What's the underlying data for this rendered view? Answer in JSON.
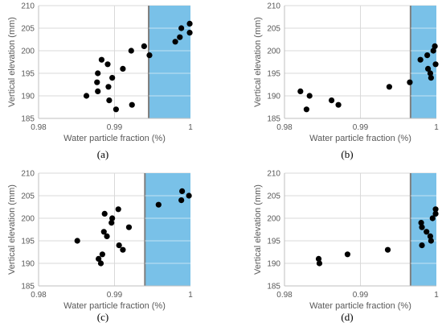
{
  "figure": {
    "captions": [
      "(a)",
      "(b)",
      "(c)",
      "(d)"
    ]
  },
  "colors": {
    "point": "#000000",
    "highlight_fill": "#79c1e8",
    "highlight_border": "#7f7f7f",
    "grid": "#d9d9d9",
    "axis": "#bfbfbf"
  },
  "chart_data": [
    {
      "type": "scatter",
      "caption": "(a)",
      "xlabel": "Water particle fraction (%)",
      "ylabel": "Vertical elevation (mm)",
      "xlim": [
        0.98,
        1
      ],
      "ylim": [
        185,
        210
      ],
      "xticks": [
        "0.98",
        "0.99",
        "1"
      ],
      "yticks": [
        "185",
        "190",
        "195",
        "200",
        "205",
        "210"
      ],
      "grid": true,
      "highlight_region": {
        "x": [
          0.9945,
          1.0
        ],
        "y": [
          185,
          210
        ]
      },
      "points": [
        {
          "x": 0.9863,
          "y": 190
        },
        {
          "x": 0.9877,
          "y": 193
        },
        {
          "x": 0.9878,
          "y": 195
        },
        {
          "x": 0.9878,
          "y": 191
        },
        {
          "x": 0.9883,
          "y": 198
        },
        {
          "x": 0.9891,
          "y": 197
        },
        {
          "x": 0.9892,
          "y": 192
        },
        {
          "x": 0.9893,
          "y": 189
        },
        {
          "x": 0.9897,
          "y": 194
        },
        {
          "x": 0.9902,
          "y": 187
        },
        {
          "x": 0.9911,
          "y": 196
        },
        {
          "x": 0.9922,
          "y": 200
        },
        {
          "x": 0.9923,
          "y": 188
        },
        {
          "x": 0.9939,
          "y": 201
        },
        {
          "x": 0.9946,
          "y": 199
        },
        {
          "x": 0.998,
          "y": 202
        },
        {
          "x": 0.9986,
          "y": 203
        },
        {
          "x": 0.9988,
          "y": 205
        },
        {
          "x": 0.9999,
          "y": 206
        },
        {
          "x": 0.9999,
          "y": 204
        }
      ]
    },
    {
      "type": "scatter",
      "caption": "(b)",
      "xlabel": "Water particle fraction (%)",
      "ylabel": "Vertical elevation (mm)",
      "xlim": [
        0.98,
        1
      ],
      "ylim": [
        185,
        210
      ],
      "xticks": [
        "0.98",
        "0.99",
        "1"
      ],
      "yticks": [
        "185",
        "190",
        "195",
        "200",
        "205",
        "210"
      ],
      "grid": true,
      "highlight_region": {
        "x": [
          0.9966,
          1.0
        ],
        "y": [
          185,
          210
        ]
      },
      "points": [
        {
          "x": 0.9821,
          "y": 191
        },
        {
          "x": 0.9829,
          "y": 187
        },
        {
          "x": 0.9833,
          "y": 190
        },
        {
          "x": 0.9862,
          "y": 189
        },
        {
          "x": 0.9871,
          "y": 188
        },
        {
          "x": 0.9938,
          "y": 192
        },
        {
          "x": 0.9965,
          "y": 193
        },
        {
          "x": 0.9979,
          "y": 198
        },
        {
          "x": 0.9988,
          "y": 199
        },
        {
          "x": 0.9989,
          "y": 196
        },
        {
          "x": 0.9992,
          "y": 195
        },
        {
          "x": 0.9993,
          "y": 194
        },
        {
          "x": 0.9996,
          "y": 200
        },
        {
          "x": 0.9998,
          "y": 201
        },
        {
          "x": 0.9999,
          "y": 197
        }
      ]
    },
    {
      "type": "scatter",
      "caption": "(c)",
      "xlabel": "Water particle fraction (%)",
      "ylabel": "Vertical elevation (mm)",
      "xlim": [
        0.98,
        1
      ],
      "ylim": [
        185,
        210
      ],
      "xticks": [
        "0.98",
        "0.99",
        "1"
      ],
      "yticks": [
        "185",
        "190",
        "195",
        "200",
        "205",
        "210"
      ],
      "grid": true,
      "highlight_region": {
        "x": [
          0.994,
          1.0
        ],
        "y": [
          185,
          210
        ]
      },
      "points": [
        {
          "x": 0.9851,
          "y": 195
        },
        {
          "x": 0.9879,
          "y": 191
        },
        {
          "x": 0.9882,
          "y": 190
        },
        {
          "x": 0.9884,
          "y": 192
        },
        {
          "x": 0.9886,
          "y": 197
        },
        {
          "x": 0.9887,
          "y": 201
        },
        {
          "x": 0.989,
          "y": 196
        },
        {
          "x": 0.9896,
          "y": 199
        },
        {
          "x": 0.9897,
          "y": 200
        },
        {
          "x": 0.9905,
          "y": 202
        },
        {
          "x": 0.9906,
          "y": 194
        },
        {
          "x": 0.9911,
          "y": 193
        },
        {
          "x": 0.9919,
          "y": 198
        },
        {
          "x": 0.9958,
          "y": 203
        },
        {
          "x": 0.9988,
          "y": 204
        },
        {
          "x": 0.9989,
          "y": 206
        },
        {
          "x": 0.9998,
          "y": 205
        }
      ]
    },
    {
      "type": "scatter",
      "caption": "(d)",
      "xlabel": "Water particle fraction (%)",
      "ylabel": "Vertical elevation (mm)",
      "xlim": [
        0.98,
        1
      ],
      "ylim": [
        185,
        210
      ],
      "xticks": [
        "0.98",
        "0.99",
        "1"
      ],
      "yticks": [
        "185",
        "190",
        "195",
        "200",
        "205",
        "210"
      ],
      "grid": true,
      "highlight_region": {
        "x": [
          0.9966,
          1.0
        ],
        "y": [
          185,
          210
        ]
      },
      "points": [
        {
          "x": 0.9845,
          "y": 191
        },
        {
          "x": 0.9846,
          "y": 190
        },
        {
          "x": 0.9883,
          "y": 192
        },
        {
          "x": 0.9936,
          "y": 193
        },
        {
          "x": 0.998,
          "y": 199
        },
        {
          "x": 0.9981,
          "y": 198
        },
        {
          "x": 0.9981,
          "y": 194
        },
        {
          "x": 0.9987,
          "y": 197
        },
        {
          "x": 0.9992,
          "y": 196
        },
        {
          "x": 0.9993,
          "y": 195
        },
        {
          "x": 0.9995,
          "y": 200
        },
        {
          "x": 0.9999,
          "y": 202
        },
        {
          "x": 0.9999,
          "y": 201
        }
      ]
    }
  ]
}
